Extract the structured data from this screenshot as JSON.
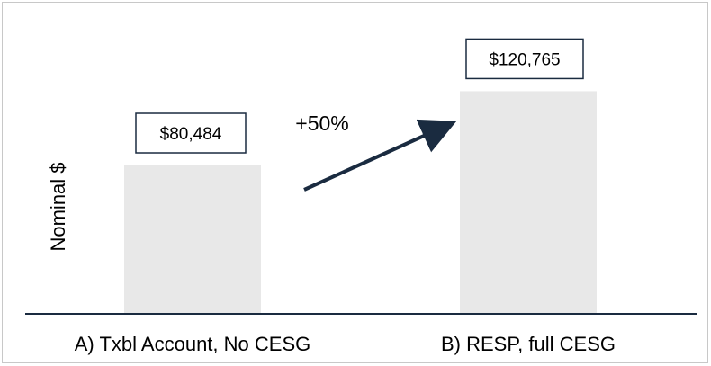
{
  "chart_data": {
    "type": "bar",
    "categories": [
      "A) Txbl Account, No CESG",
      "B) RESP, full CESG"
    ],
    "values": [
      80484,
      120765
    ],
    "data_labels": [
      "$80,484",
      "$120,765"
    ],
    "ylabel": "Nominal $",
    "annotation": "+50%",
    "ylim": [
      0,
      140000
    ],
    "grid": false,
    "colors": {
      "bar": "#e8e8e8",
      "axis": "#1a2b40",
      "arrow": "#1a2b40",
      "label_border": "#1a2b40"
    }
  }
}
